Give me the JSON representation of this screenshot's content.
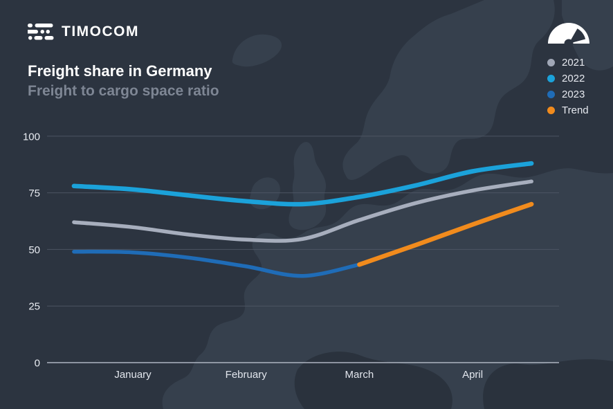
{
  "brand": {
    "name": "TIMOCOM"
  },
  "header": {
    "title": "Freight share in Germany",
    "subtitle": "Freight to cargo space ratio"
  },
  "legend": {
    "items": [
      {
        "label": "2021",
        "color": "#a0a7b6"
      },
      {
        "label": "2022",
        "color": "#1ba2da"
      },
      {
        "label": "2023",
        "color": "#1f6cb7"
      },
      {
        "label": "Trend",
        "color": "#f18b1d"
      }
    ]
  },
  "icons": {
    "gauge": "speedometer-gauge-icon",
    "logo": "truck-logo-icon"
  },
  "chart_data": {
    "type": "line",
    "title": "Freight share in Germany",
    "subtitle": "Freight to cargo space ratio",
    "xlabel": "",
    "ylabel": "",
    "x_tick_labels": [
      "January",
      "February",
      "March",
      "April"
    ],
    "y_ticks": [
      0,
      25,
      50,
      75,
      100
    ],
    "ylim": [
      0,
      100
    ],
    "xlim_months": [
      0.48,
      4.52
    ],
    "grid": true,
    "legend_position": "top-right",
    "series": [
      {
        "name": "2021",
        "color": "#a7aebd",
        "width": 5.5,
        "x": [
          0.48,
          1,
          1.5,
          2,
          2.5,
          3,
          3.5,
          4,
          4.52
        ],
        "values": [
          62,
          59.8,
          56.5,
          54.3,
          54.6,
          63,
          70.5,
          76,
          80
        ]
      },
      {
        "name": "2022",
        "color": "#1ba2da",
        "width": 6.5,
        "x": [
          0.48,
          1,
          1.5,
          2,
          2.5,
          3,
          3.5,
          4,
          4.52
        ],
        "values": [
          78,
          76.5,
          73.8,
          71.3,
          70,
          73.2,
          78.3,
          84.5,
          88
        ]
      },
      {
        "name": "2023",
        "color": "#1f6cb7",
        "width": 5.5,
        "x": [
          0.48,
          1,
          1.5,
          2,
          2.5,
          3
        ],
        "values": [
          49,
          48.7,
          46.3,
          42.5,
          38.3,
          43.3
        ]
      },
      {
        "name": "Trend",
        "color": "#f18b1d",
        "width": 6.5,
        "x": [
          3,
          3.5,
          4,
          4.52
        ],
        "values": [
          43.3,
          52,
          61,
          70
        ]
      }
    ]
  },
  "colors": {
    "background": "#2c3440",
    "map_land": "#36404d",
    "map_dark": "#2a323d",
    "grid": "#4d5563",
    "zero_axis": "#aeb5c2",
    "tick_text": "#e9ecf2",
    "month_text": "#e2e6ed"
  }
}
